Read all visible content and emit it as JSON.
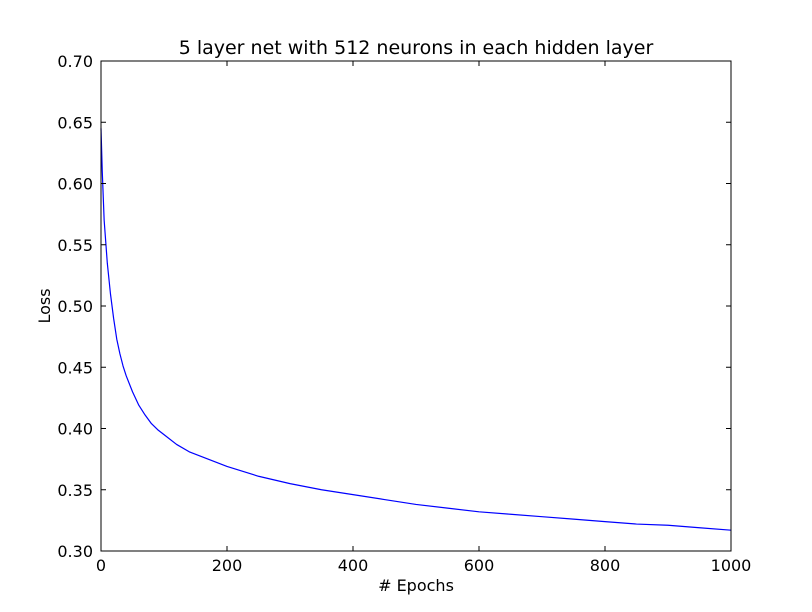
{
  "chart_data": {
    "type": "line",
    "title": "5 layer net with 512 neurons in each hidden layer",
    "xlabel": "# Epochs",
    "ylabel": "Loss",
    "xlim": [
      0,
      1000
    ],
    "ylim": [
      0.3,
      0.7
    ],
    "xticks": [
      "0",
      "200",
      "400",
      "600",
      "800",
      "1000"
    ],
    "yticks": [
      "0.30",
      "0.35",
      "0.40",
      "0.45",
      "0.50",
      "0.55",
      "0.60",
      "0.65",
      "0.70"
    ],
    "grid": false,
    "legend": false,
    "series": [
      {
        "color": "#0000ff",
        "x": [
          0,
          2,
          5,
          10,
          15,
          20,
          25,
          30,
          35,
          40,
          50,
          60,
          70,
          80,
          90,
          100,
          120,
          140,
          160,
          180,
          200,
          250,
          300,
          350,
          400,
          450,
          500,
          550,
          600,
          650,
          700,
          750,
          800,
          850,
          900,
          950,
          1000
        ],
        "y": [
          0.645,
          0.61,
          0.57,
          0.535,
          0.51,
          0.49,
          0.473,
          0.461,
          0.451,
          0.443,
          0.43,
          0.419,
          0.411,
          0.404,
          0.399,
          0.395,
          0.387,
          0.381,
          0.377,
          0.373,
          0.369,
          0.361,
          0.355,
          0.35,
          0.346,
          0.342,
          0.338,
          0.335,
          0.332,
          0.33,
          0.328,
          0.326,
          0.324,
          0.322,
          0.321,
          0.319,
          0.317
        ]
      }
    ]
  }
}
